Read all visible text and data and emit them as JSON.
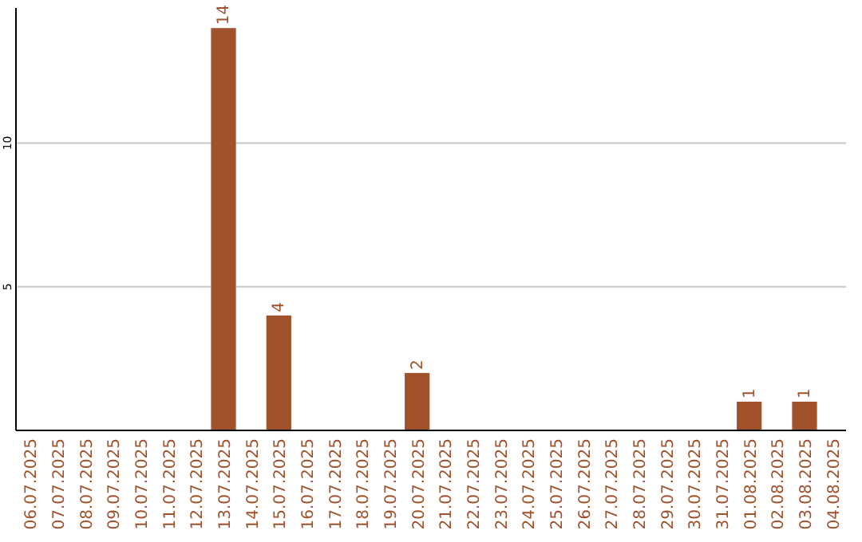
{
  "chart_data": {
    "type": "bar",
    "categories": [
      "06.07.2025",
      "07.07.2025",
      "08.07.2025",
      "09.07.2025",
      "10.07.2025",
      "11.07.2025",
      "12.07.2025",
      "13.07.2025",
      "14.07.2025",
      "15.07.2025",
      "16.07.2025",
      "17.07.2025",
      "18.07.2025",
      "19.07.2025",
      "20.07.2025",
      "21.07.2025",
      "22.07.2025",
      "23.07.2025",
      "24.07.2025",
      "25.07.2025",
      "26.07.2025",
      "27.07.2025",
      "28.07.2025",
      "29.07.2025",
      "30.07.2025",
      "31.07.2025",
      "01.08.2025",
      "02.08.2025",
      "03.08.2025",
      "04.08.2025"
    ],
    "values": [
      0,
      0,
      0,
      0,
      0,
      0,
      0,
      14,
      0,
      4,
      0,
      0,
      0,
      0,
      2,
      0,
      0,
      0,
      0,
      0,
      0,
      0,
      0,
      0,
      0,
      0,
      1,
      0,
      1,
      0
    ],
    "value_labels": [
      null,
      null,
      null,
      null,
      null,
      null,
      null,
      "14",
      null,
      "4",
      null,
      null,
      null,
      null,
      "2",
      null,
      null,
      null,
      null,
      null,
      null,
      null,
      null,
      null,
      null,
      null,
      "1",
      null,
      "1",
      null
    ],
    "color": "#a0522d",
    "ylim": [
      0,
      14.7
    ],
    "yticks": [
      5,
      10
    ],
    "grid": "y"
  }
}
